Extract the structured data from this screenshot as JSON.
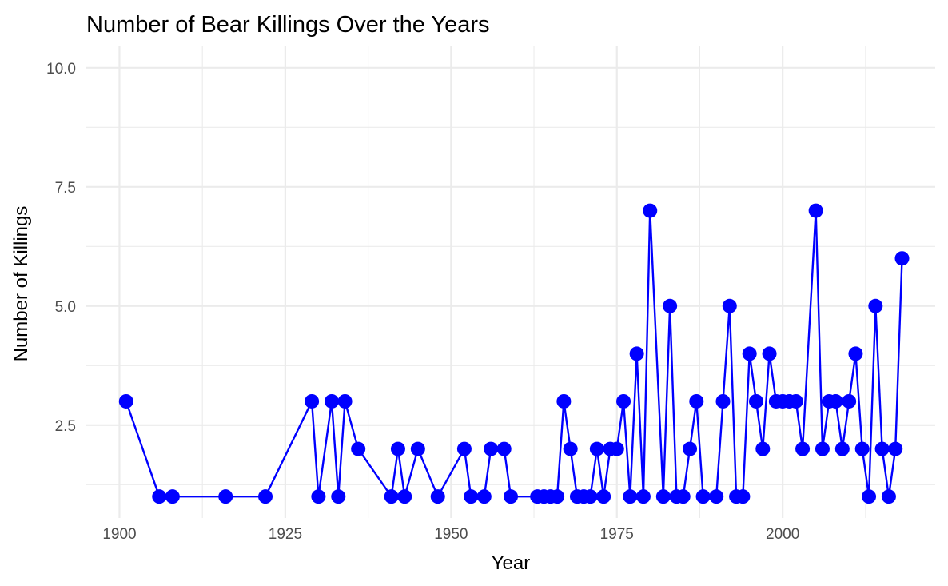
{
  "chart_data": {
    "type": "line",
    "title": "Number of Bear Killings Over the Years",
    "xlabel": "Year",
    "ylabel": "Number of Killings",
    "xlim": [
      1895,
      2023
    ],
    "ylim": [
      0.55,
      10.45
    ],
    "x_ticks": [
      1900,
      1925,
      1950,
      1975,
      2000
    ],
    "x_tick_labels": [
      "1900",
      "1925",
      "1950",
      "1975",
      "2000"
    ],
    "y_ticks": [
      2.5,
      5.0,
      7.5,
      10.0
    ],
    "y_tick_labels": [
      "2.5",
      "5.0",
      "7.5",
      "10.0"
    ],
    "grid": true,
    "series": [
      {
        "color": "#0000ff",
        "points": [
          [
            1901,
            3
          ],
          [
            1906,
            1
          ],
          [
            1908,
            1
          ],
          [
            1916,
            1
          ],
          [
            1922,
            1
          ],
          [
            1929,
            3
          ],
          [
            1930,
            1
          ],
          [
            1932,
            3
          ],
          [
            1933,
            1
          ],
          [
            1934,
            3
          ],
          [
            1936,
            2
          ],
          [
            1941,
            1
          ],
          [
            1942,
            2
          ],
          [
            1943,
            1
          ],
          [
            1945,
            2
          ],
          [
            1948,
            1
          ],
          [
            1952,
            2
          ],
          [
            1953,
            1
          ],
          [
            1955,
            1
          ],
          [
            1956,
            2
          ],
          [
            1958,
            2
          ],
          [
            1959,
            1
          ],
          [
            1963,
            1
          ],
          [
            1964,
            1
          ],
          [
            1965,
            1
          ],
          [
            1966,
            1
          ],
          [
            1967,
            3
          ],
          [
            1968,
            2
          ],
          [
            1969,
            1
          ],
          [
            1970,
            1
          ],
          [
            1971,
            1
          ],
          [
            1972,
            2
          ],
          [
            1973,
            1
          ],
          [
            1974,
            2
          ],
          [
            1975,
            2
          ],
          [
            1976,
            3
          ],
          [
            1977,
            1
          ],
          [
            1978,
            4
          ],
          [
            1979,
            1
          ],
          [
            1980,
            7
          ],
          [
            1982,
            1
          ],
          [
            1983,
            5
          ],
          [
            1984,
            1
          ],
          [
            1985,
            1
          ],
          [
            1986,
            2
          ],
          [
            1987,
            3
          ],
          [
            1988,
            1
          ],
          [
            1990,
            1
          ],
          [
            1991,
            3
          ],
          [
            1992,
            5
          ],
          [
            1993,
            1
          ],
          [
            1994,
            1
          ],
          [
            1995,
            4
          ],
          [
            1996,
            3
          ],
          [
            1997,
            2
          ],
          [
            1998,
            4
          ],
          [
            1999,
            3
          ],
          [
            2000,
            3
          ],
          [
            2001,
            3
          ],
          [
            2002,
            3
          ],
          [
            2003,
            2
          ],
          [
            2005,
            7
          ],
          [
            2006,
            2
          ],
          [
            2007,
            3
          ],
          [
            2008,
            3
          ],
          [
            2009,
            2
          ],
          [
            2010,
            3
          ],
          [
            2011,
            4
          ],
          [
            2012,
            2
          ],
          [
            2013,
            1
          ],
          [
            2014,
            5
          ],
          [
            2015,
            2
          ],
          [
            2016,
            1
          ],
          [
            2017,
            2
          ],
          [
            2018,
            6
          ]
        ]
      }
    ]
  }
}
